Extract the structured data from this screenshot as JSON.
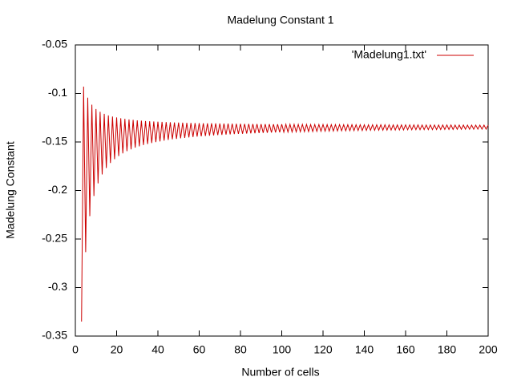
{
  "chart_data": {
    "type": "line",
    "title": "Madelung Constant 1",
    "x_label": "Number of cells",
    "y_label": "Madelung Constant",
    "xlim": [
      0,
      200
    ],
    "xticks": [
      0,
      20,
      40,
      60,
      80,
      100,
      120,
      140,
      160,
      180,
      200
    ],
    "ylim": [
      -0.35,
      -0.05
    ],
    "yticks": [
      -0.35,
      -0.3,
      -0.25,
      -0.2,
      -0.15,
      -0.1,
      -0.05
    ],
    "legend": "top-right",
    "x": [
      3,
      4,
      5,
      6,
      7,
      8,
      9,
      10,
      11,
      12,
      13,
      14,
      15,
      16,
      17,
      18,
      19,
      20,
      21,
      22,
      23,
      24,
      25,
      26,
      27,
      28,
      29,
      30,
      31,
      32,
      33,
      34,
      35,
      36,
      37,
      38,
      39,
      40,
      41,
      42,
      43,
      44,
      45,
      46,
      47,
      48,
      49,
      50,
      51,
      52,
      53,
      54,
      55,
      56,
      57,
      58,
      59,
      60,
      61,
      62,
      63,
      64,
      65,
      66,
      67,
      68,
      69,
      70,
      71,
      72,
      73,
      74,
      75,
      76,
      77,
      78,
      79,
      80,
      81,
      82,
      83,
      84,
      85,
      86,
      87,
      88,
      89,
      90,
      91,
      92,
      93,
      94,
      95,
      96,
      97,
      98,
      99,
      100,
      101,
      102,
      103,
      104,
      105,
      106,
      107,
      108,
      109,
      110,
      111,
      112,
      113,
      114,
      115,
      116,
      117,
      118,
      119,
      120,
      121,
      122,
      123,
      124,
      125,
      126,
      127,
      128,
      129,
      130,
      131,
      132,
      133,
      134,
      135,
      136,
      137,
      138,
      139,
      140,
      141,
      142,
      143,
      144,
      145,
      146,
      147,
      148,
      149,
      150,
      151,
      152,
      153,
      154,
      155,
      156,
      157,
      158,
      159,
      160,
      161,
      162,
      163,
      164,
      165,
      166,
      167,
      168,
      169,
      170,
      171,
      172,
      173,
      174,
      175,
      176,
      177,
      178,
      179,
      180,
      181,
      182,
      183,
      184,
      185,
      186,
      187,
      188,
      189,
      190,
      191,
      192,
      193,
      194,
      195,
      196,
      197,
      198,
      199,
      200
    ],
    "series": [
      {
        "name": "'Madelung1.txt'",
        "color": "#cc0000",
        "values": [
          -0.335,
          -0.093,
          -0.2635,
          -0.1043,
          -0.2264,
          -0.1116,
          -0.2057,
          -0.116,
          -0.1926,
          -0.1189,
          -0.1835,
          -0.121,
          -0.1768,
          -0.1226,
          -0.1717,
          -0.1238,
          -0.1677,
          -0.1247,
          -0.1645,
          -0.1255,
          -0.1618,
          -0.1262,
          -0.1595,
          -0.1268,
          -0.1576,
          -0.1272,
          -0.1559,
          -0.1277,
          -0.1545,
          -0.128,
          -0.1532,
          -0.1284,
          -0.1521,
          -0.1286,
          -0.1511,
          -0.1289,
          -0.1502,
          -0.1291,
          -0.1494,
          -0.1293,
          -0.1486,
          -0.1295,
          -0.1479,
          -0.1297,
          -0.1473,
          -0.1299,
          -0.1468,
          -0.13,
          -0.1462,
          -0.1301,
          -0.1458,
          -0.1303,
          -0.1453,
          -0.1304,
          -0.1449,
          -0.1305,
          -0.1445,
          -0.1306,
          -0.1442,
          -0.1307,
          -0.1438,
          -0.1308,
          -0.1435,
          -0.1308,
          -0.1432,
          -0.1309,
          -0.1429,
          -0.131,
          -0.1427,
          -0.1311,
          -0.1424,
          -0.1311,
          -0.1422,
          -0.1312,
          -0.1419,
          -0.1313,
          -0.1417,
          -0.1313,
          -0.1415,
          -0.1314,
          -0.1413,
          -0.1314,
          -0.1411,
          -0.1315,
          -0.141,
          -0.1315,
          -0.1408,
          -0.1316,
          -0.1406,
          -0.1316,
          -0.1405,
          -0.1316,
          -0.1403,
          -0.1317,
          -0.1402,
          -0.1317,
          -0.1401,
          -0.1317,
          -0.1399,
          -0.1318,
          -0.1398,
          -0.1318,
          -0.1397,
          -0.1318,
          -0.1396,
          -0.1319,
          -0.1395,
          -0.1319,
          -0.1394,
          -0.1319,
          -0.1393,
          -0.132,
          -0.1392,
          -0.132,
          -0.1391,
          -0.132,
          -0.139,
          -0.132,
          -0.1389,
          -0.1321,
          -0.1388,
          -0.1321,
          -0.1387,
          -0.1321,
          -0.1386,
          -0.1321,
          -0.1385,
          -0.1322,
          -0.1385,
          -0.1322,
          -0.1384,
          -0.1322,
          -0.1383,
          -0.1322,
          -0.1382,
          -0.1322,
          -0.1382,
          -0.1323,
          -0.1381,
          -0.1323,
          -0.138,
          -0.1323,
          -0.138,
          -0.1323,
          -0.1379,
          -0.1323,
          -0.1379,
          -0.1323,
          -0.1378,
          -0.1323,
          -0.1377,
          -0.1324,
          -0.1377,
          -0.1324,
          -0.1376,
          -0.1324,
          -0.1376,
          -0.1324,
          -0.1375,
          -0.1324,
          -0.1375,
          -0.1324,
          -0.1374,
          -0.1324,
          -0.1374,
          -0.1325,
          -0.1373,
          -0.1325,
          -0.1373,
          -0.1325,
          -0.1373,
          -0.1325,
          -0.1372,
          -0.1325,
          -0.1372,
          -0.1325,
          -0.1371,
          -0.1325,
          -0.1371,
          -0.1325,
          -0.1371,
          -0.1326,
          -0.137,
          -0.1326,
          -0.137,
          -0.1326,
          -0.1369,
          -0.1326,
          -0.1369,
          -0.1326,
          -0.1369,
          -0.1326,
          -0.1368,
          -0.1326,
          -0.1368,
          -0.1326,
          -0.1368,
          -0.1326
        ]
      }
    ]
  }
}
